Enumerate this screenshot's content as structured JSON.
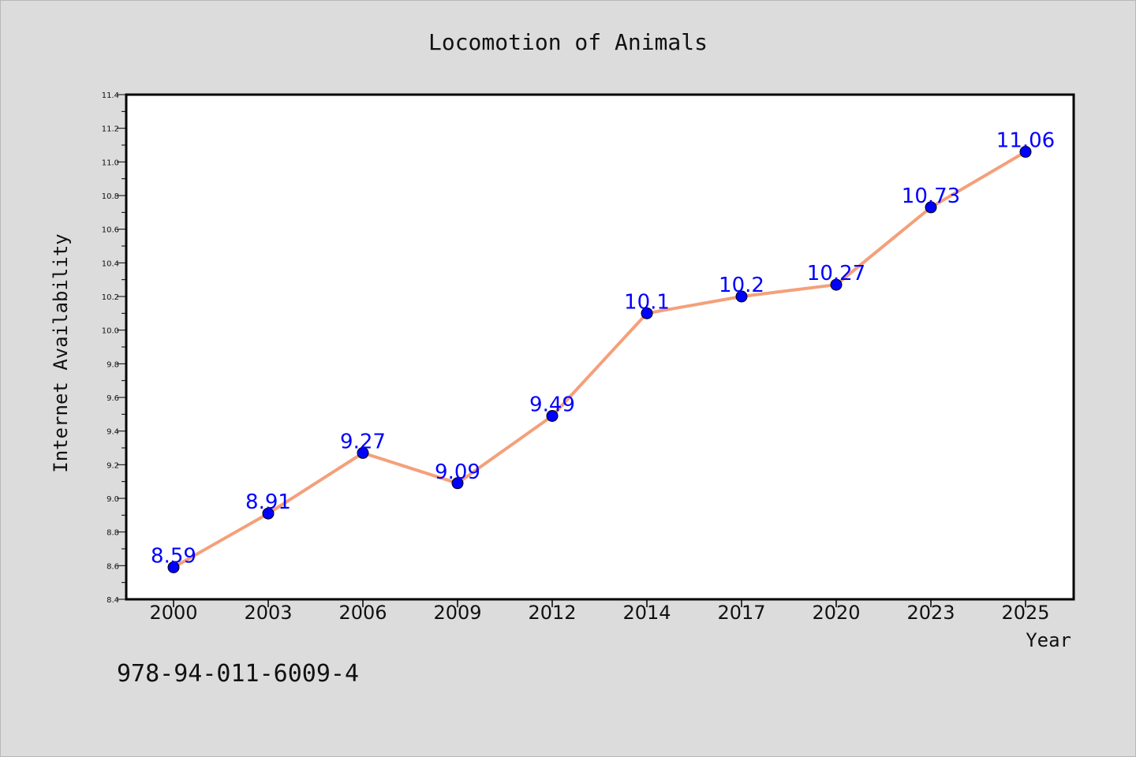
{
  "chart_data": {
    "type": "line",
    "title": "Locomotion of Animals",
    "xlabel": "Year",
    "ylabel": "Internet Availability",
    "categories": [
      "2000",
      "2003",
      "2006",
      "2009",
      "2012",
      "2014",
      "2017",
      "2020",
      "2023",
      "2025"
    ],
    "series": [
      {
        "values": [
          8.59,
          8.91,
          9.27,
          9.09,
          9.49,
          10.1,
          10.2,
          10.27,
          10.73,
          11.06
        ],
        "data_labels": [
          "8.59",
          "8.91",
          "9.27",
          "9.09",
          "9.49",
          "10.1",
          "10.2",
          "10.27",
          "10.73",
          "11.06"
        ],
        "line_color": "#f4a07a",
        "marker_color": "#0000ff"
      }
    ],
    "ylim": [
      8.4,
      11.4
    ],
    "yticks": [
      "8.4",
      "8.6",
      "8.8",
      "9.0",
      "9.2",
      "9.4",
      "9.6",
      "9.8",
      "10.0",
      "10.2",
      "10.4",
      "10.6",
      "10.8",
      "11.0",
      "11.2",
      "11.4"
    ],
    "grid": false,
    "legend": "none"
  },
  "annotation": "978-94-011-6009-4"
}
